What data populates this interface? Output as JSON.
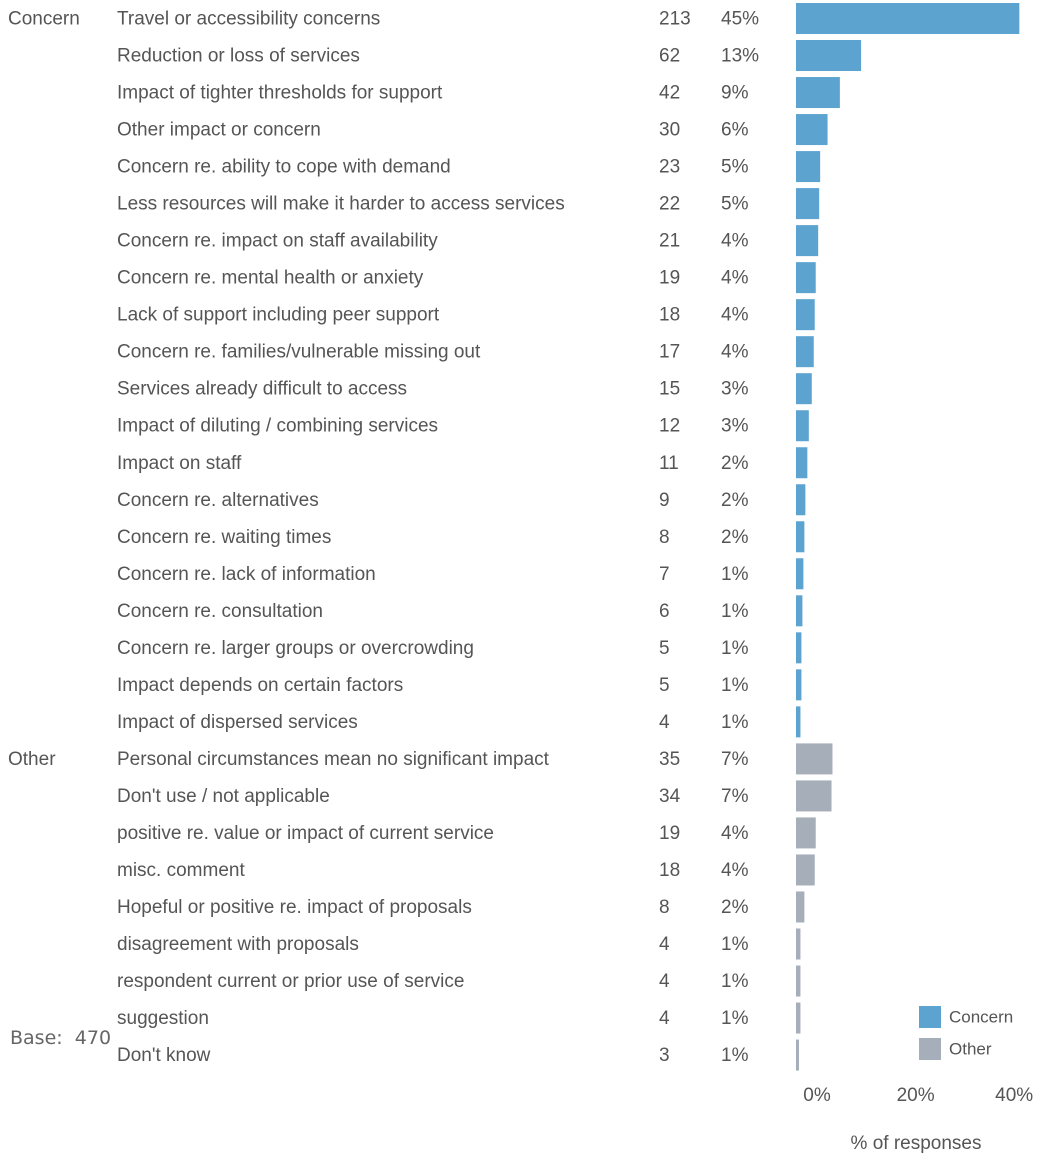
{
  "base": {
    "label": "Base:",
    "value": "470"
  },
  "chart_data": {
    "type": "bar",
    "orientation": "horizontal",
    "xlabel": "% of responses",
    "xlim": [
      0,
      45
    ],
    "xticks": [
      0,
      20,
      40
    ],
    "xtick_labels": [
      "0%",
      "20%",
      "40%"
    ],
    "grid": false,
    "legend": {
      "placement": "bottom-right",
      "entries": [
        "Concern",
        "Other"
      ]
    },
    "colors": {
      "Concern": "#5ca3cf",
      "Other": "#a6aeba"
    },
    "groups": [
      {
        "name": "Concern",
        "rows": [
          {
            "label": "Travel or accessibility concerns",
            "count": "213",
            "pct_label": "45%",
            "value": 45.3
          },
          {
            "label": "Reduction or loss of services",
            "count": "62",
            "pct_label": "13%",
            "value": 13.2
          },
          {
            "label": "Impact of tighter thresholds for support",
            "count": "42",
            "pct_label": "9%",
            "value": 8.9
          },
          {
            "label": "Other impact or concern",
            "count": "30",
            "pct_label": "6%",
            "value": 6.4
          },
          {
            "label": "Concern re. ability to cope with demand",
            "count": "23",
            "pct_label": "5%",
            "value": 4.9
          },
          {
            "label": "Less resources will make it harder to access services",
            "count": "22",
            "pct_label": "5%",
            "value": 4.7
          },
          {
            "label": "Concern re. impact on staff availability",
            "count": "21",
            "pct_label": "4%",
            "value": 4.5
          },
          {
            "label": "Concern re. mental health or anxiety",
            "count": "19",
            "pct_label": "4%",
            "value": 4.0
          },
          {
            "label": "Lack of support including peer support",
            "count": "18",
            "pct_label": "4%",
            "value": 3.8
          },
          {
            "label": "Concern re. families/vulnerable missing out",
            "count": "17",
            "pct_label": "4%",
            "value": 3.6
          },
          {
            "label": "Services already difficult to access",
            "count": "15",
            "pct_label": "3%",
            "value": 3.2
          },
          {
            "label": "Impact of diluting / combining services",
            "count": "12",
            "pct_label": "3%",
            "value": 2.6
          },
          {
            "label": "Impact on staff",
            "count": "11",
            "pct_label": "2%",
            "value": 2.3
          },
          {
            "label": "Concern re. alternatives",
            "count": "9",
            "pct_label": "2%",
            "value": 1.9
          },
          {
            "label": "Concern re. waiting times",
            "count": "8",
            "pct_label": "2%",
            "value": 1.7
          },
          {
            "label": "Concern re. lack of information",
            "count": "7",
            "pct_label": "1%",
            "value": 1.5
          },
          {
            "label": "Concern re. consultation",
            "count": "6",
            "pct_label": "1%",
            "value": 1.3
          },
          {
            "label": "Concern re. larger groups or overcrowding",
            "count": "5",
            "pct_label": "1%",
            "value": 1.1
          },
          {
            "label": "Impact depends on certain factors",
            "count": "5",
            "pct_label": "1%",
            "value": 1.1
          },
          {
            "label": "Impact of dispersed services",
            "count": "4",
            "pct_label": "1%",
            "value": 0.9
          }
        ]
      },
      {
        "name": "Other",
        "rows": [
          {
            "label": "Personal circumstances mean no significant impact",
            "count": "35",
            "pct_label": "7%",
            "value": 7.4
          },
          {
            "label": "Don't use / not applicable",
            "count": "34",
            "pct_label": "7%",
            "value": 7.2
          },
          {
            "label": "positive re. value or impact of current service",
            "count": "19",
            "pct_label": "4%",
            "value": 4.0
          },
          {
            "label": "misc. comment",
            "count": "18",
            "pct_label": "4%",
            "value": 3.8
          },
          {
            "label": "Hopeful or positive re. impact of proposals",
            "count": "8",
            "pct_label": "2%",
            "value": 1.7
          },
          {
            "label": "disagreement with proposals",
            "count": "4",
            "pct_label": "1%",
            "value": 0.9
          },
          {
            "label": "respondent current or prior use of service",
            "count": "4",
            "pct_label": "1%",
            "value": 0.9
          },
          {
            "label": "suggestion",
            "count": "4",
            "pct_label": "1%",
            "value": 0.9
          },
          {
            "label": "Don't know",
            "count": "3",
            "pct_label": "1%",
            "value": 0.6
          }
        ]
      }
    ]
  }
}
